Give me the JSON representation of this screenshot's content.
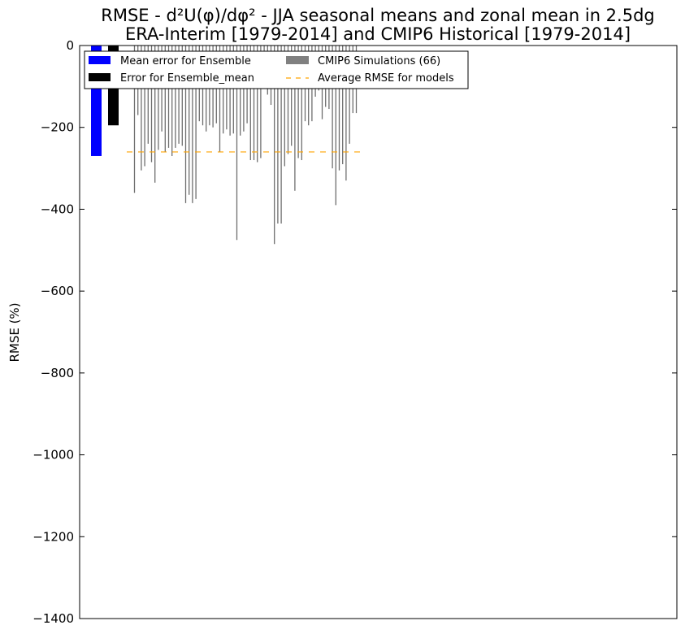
{
  "chart_data": {
    "type": "bar",
    "title": "RMSE - d²U(φ)/dφ² - JJA seasonal means and zonal mean in 2.5dg",
    "subtitle": "ERA-Interim [1979-2014] and CMIP6 Historical [1979-2014]",
    "xlabel": "",
    "ylabel": "RMSE (%)",
    "ylim": [
      -1400,
      0
    ],
    "yticks": [
      0,
      -200,
      -400,
      -600,
      -800,
      -1000,
      -1200,
      -1400
    ],
    "ytick_labels": [
      "0",
      "−200",
      "−400",
      "−600",
      "−800",
      "−1000",
      "−1200",
      "−1400"
    ],
    "xticks_shown": false,
    "grid": false,
    "legend_position": "top-left",
    "legend": [
      {
        "label": "Mean error for Ensemble",
        "color": "#0000ff",
        "kind": "bar"
      },
      {
        "label": "Error for Ensemble_mean",
        "color": "#000000",
        "kind": "bar"
      },
      {
        "label": "CMIP6 Simulations (66)",
        "color": "#808080",
        "kind": "bar"
      },
      {
        "label": "Average RMSE for models",
        "color": "#ffa500",
        "kind": "dashed-line"
      }
    ],
    "series": [
      {
        "name": "Mean error for Ensemble",
        "color": "#0000ff",
        "values": [
          -270
        ]
      },
      {
        "name": "Error for Ensemble_mean",
        "color": "#000000",
        "values": [
          -195
        ]
      },
      {
        "name": "CMIP6 Simulations (66)",
        "color": "#808080",
        "values": [
          -360,
          -170,
          -305,
          -295,
          -240,
          -285,
          -335,
          -255,
          -210,
          -260,
          -250,
          -270,
          -250,
          -240,
          -245,
          -385,
          -365,
          -385,
          -375,
          -185,
          -195,
          -210,
          -195,
          -200,
          -190,
          -260,
          -215,
          -205,
          -220,
          -215,
          -475,
          -220,
          -210,
          -190,
          -280,
          -280,
          -285,
          -275,
          -100,
          -120,
          -145,
          -485,
          -435,
          -435,
          -295,
          -265,
          -245,
          -355,
          -275,
          -280,
          -185,
          -195,
          -185,
          -125,
          -110,
          -180,
          -150,
          -155,
          -300,
          -390,
          -305,
          -290,
          -330,
          -240,
          -165,
          -165
        ]
      },
      {
        "name": "Average RMSE for models",
        "color": "#ffa500",
        "values": [
          -260
        ]
      }
    ]
  }
}
